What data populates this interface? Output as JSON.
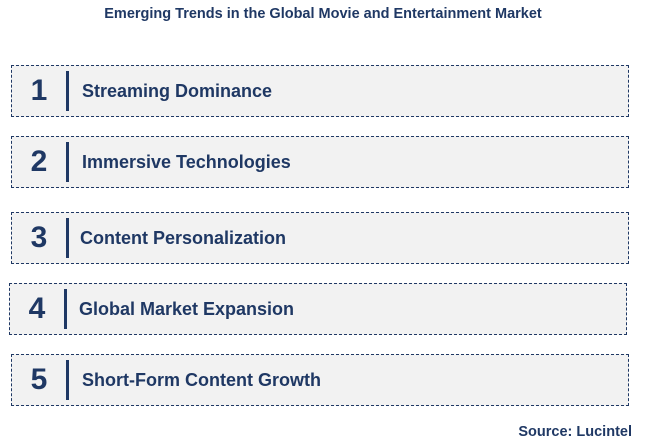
{
  "title": "Emerging Trends in the Global Movie and Entertainment Market",
  "trends": [
    {
      "number": "1",
      "label": "Streaming Dominance"
    },
    {
      "number": "2",
      "label": "Immersive Technologies"
    },
    {
      "number": "3",
      "label": "Content Personalization"
    },
    {
      "number": "4",
      "label": "Global Market Expansion"
    },
    {
      "number": "5",
      "label": "Short-Form Content Growth"
    }
  ],
  "source": "Source: Lucintel",
  "colors": {
    "text": "#1f3864",
    "box_fill": "#f2f2f2",
    "box_border": "#1f3864"
  }
}
